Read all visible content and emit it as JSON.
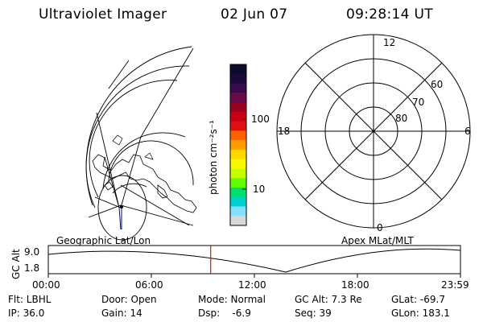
{
  "header": {
    "instrument": "Ultraviolet Imager",
    "date": "02 Jun 07",
    "time": "09:28:14 UT"
  },
  "colorbar": {
    "label": "photon cm⁻²s⁻¹",
    "ticks": [
      "100",
      "10"
    ],
    "colors": [
      "#0a0a2e",
      "#1a0a3a",
      "#3a0a4a",
      "#6a0a4a",
      "#9a0020",
      "#c80010",
      "#e01010",
      "#ff6000",
      "#ff9c00",
      "#ffd800",
      "#f8f800",
      "#c8ff00",
      "#60ff00",
      "#00e070",
      "#00d0d0",
      "#80e0ff",
      "#d8d8d8"
    ]
  },
  "polar_plot": {
    "mlt_labels": {
      "top": "12",
      "left": "18",
      "right": "6",
      "bottom": "0"
    },
    "lat_labels": [
      "60",
      "70",
      "80"
    ]
  },
  "timeline": {
    "left_label": "Geographic Lat/Lon",
    "right_label": "Apex MLat/MLT",
    "axis_label": "GC Alt",
    "y_ticks": [
      "9.0",
      "1.8"
    ],
    "x_ticks": [
      "00:00",
      "06:00",
      "12:00",
      "18:00",
      "23:59"
    ],
    "current_time_fraction": 0.394
  },
  "info": {
    "row1": [
      "Flt: LBHL",
      "Door: Open",
      "Mode: Normal",
      "GC Alt: 7.3 Re",
      "GLat: -69.7"
    ],
    "row2": [
      "IP: 36.0",
      "Gain: 14",
      "Dsp:    -6.9",
      "Seq: 39",
      "GLon: 183.1"
    ]
  },
  "colors": {
    "time_marker": "#e01010",
    "line": "#000000"
  }
}
